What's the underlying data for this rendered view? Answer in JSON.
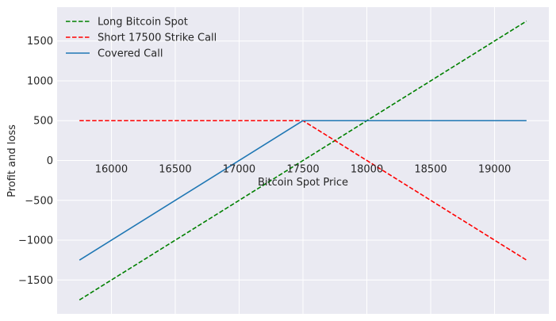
{
  "chart_data": {
    "type": "line",
    "title": "",
    "xlabel": "Bitcoin Spot Price",
    "ylabel": "Profit and loss",
    "xlim": [
      15575,
      19425
    ],
    "ylim": [
      -1925,
      1925
    ],
    "xticks": [
      16000,
      16500,
      17000,
      17500,
      18000,
      18500,
      19000
    ],
    "yticks": [
      -1500,
      -1000,
      -500,
      0,
      500,
      1000,
      1500
    ],
    "ytick_labels": [
      "−1500",
      "−1000",
      "−500",
      "0",
      "500",
      "1000",
      "1500"
    ],
    "grid": true,
    "legend_position": "top-left",
    "x": [
      15750,
      17500,
      19250
    ],
    "series": [
      {
        "name": "Long Bitcoin Spot",
        "values": [
          -1750,
          0,
          1750
        ],
        "color": "#008000",
        "dash": true
      },
      {
        "name": "Short 17500 Strike Call",
        "values": [
          500,
          500,
          -1250
        ],
        "color": "#ff0000",
        "dash": true
      },
      {
        "name": "Covered Call",
        "values": [
          -1250,
          500,
          500
        ],
        "color": "#1f77b4",
        "dash": false
      }
    ],
    "background_color": "#eaeaf2",
    "grid_color": "#ffffff"
  }
}
